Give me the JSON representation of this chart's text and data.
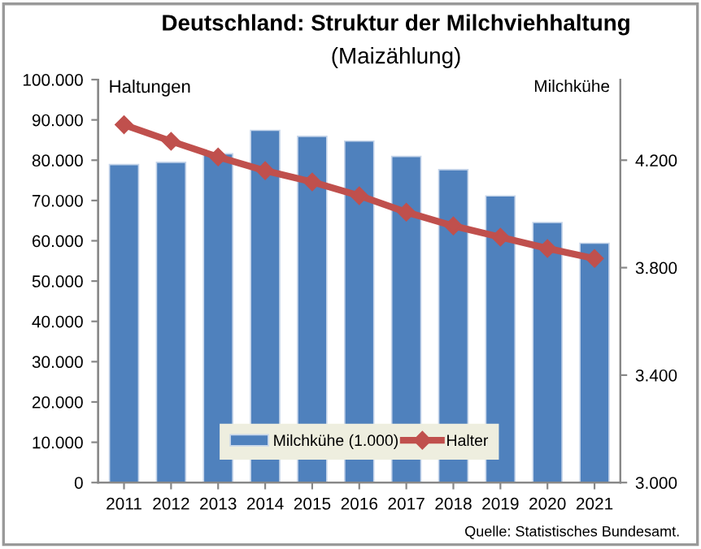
{
  "chart_data": {
    "type": "bar",
    "title": "Deutschland: Struktur der Milchviehhaltung",
    "subtitle": "(Maizählung)",
    "ylabel": "Haltungen",
    "y2label": "Milchkühe",
    "categories": [
      "2011",
      "2012",
      "2013",
      "2014",
      "2015",
      "2016",
      "2017",
      "2018",
      "2019",
      "2020",
      "2021"
    ],
    "series": [
      {
        "name": "Milchkühe (1.000)",
        "axis": "y2",
        "color": "#4f81bd",
        "values": [
          4184,
          4192,
          4224,
          4311,
          4289,
          4271,
          4214,
          4165,
          4067,
          3968,
          3891
        ]
      },
      {
        "name": "Halter",
        "type": "line",
        "axis": "y",
        "color": "#c0504d",
        "marker": "diamond",
        "values": [
          88800,
          84700,
          80800,
          77400,
          74600,
          71200,
          67100,
          63700,
          60900,
          58100,
          55600
        ]
      }
    ],
    "ylim": [
      0,
      100000
    ],
    "yticks": [
      0,
      {
        "value": 10000,
        "label": "10.000"
      },
      {
        "value": 20000,
        "label": "20.000"
      },
      {
        "value": 30000,
        "label": "30.000"
      },
      {
        "value": 40000,
        "label": "40.000"
      },
      {
        "value": 50000,
        "label": "50.000"
      },
      {
        "value": 60000,
        "label": "60.000"
      },
      {
        "value": 70000,
        "label": "70.000"
      },
      {
        "value": 80000,
        "label": "80.000"
      },
      {
        "value": 90000,
        "label": "90.000"
      },
      {
        "value": 100000,
        "label": "100.000"
      }
    ],
    "y2lim": [
      3000,
      4500
    ],
    "y2ticks": [
      {
        "value": 3000,
        "label": "3.000"
      },
      {
        "value": 3400,
        "label": "3.400"
      },
      {
        "value": 3800,
        "label": "3.800"
      },
      {
        "value": 4200,
        "label": "4.200"
      }
    ],
    "grid": false,
    "legend": "bottom",
    "annotations": [
      "Quelle: Statistisches Bundesamt."
    ]
  }
}
